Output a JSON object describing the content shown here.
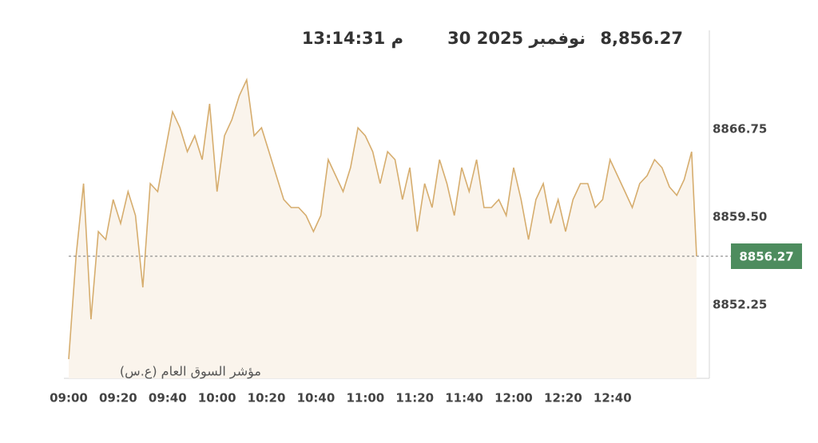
{
  "chart_data": {
    "type": "area",
    "header": {
      "value_label": "8,856.27",
      "date": "30 نوفمبر 2025",
      "time": "13:14:31 م"
    },
    "index_name": "مؤشر السوق العام (ع.س)",
    "last_value": 8856.27,
    "line_color": "#d6ad6e",
    "fill_color": "#faf4ec",
    "badge_color": "#4d8c5e",
    "x": [
      "09:00",
      "09:03",
      "09:06",
      "09:09",
      "09:12",
      "09:15",
      "09:18",
      "09:21",
      "09:24",
      "09:27",
      "09:30",
      "09:33",
      "09:36",
      "09:39",
      "09:42",
      "09:45",
      "09:48",
      "09:51",
      "09:54",
      "09:57",
      "10:00",
      "10:03",
      "10:06",
      "10:09",
      "10:12",
      "10:15",
      "10:18",
      "10:21",
      "10:24",
      "10:27",
      "10:30",
      "10:33",
      "10:36",
      "10:39",
      "10:42",
      "10:45",
      "10:48",
      "10:51",
      "10:54",
      "10:57",
      "11:00",
      "11:03",
      "11:06",
      "11:09",
      "11:12",
      "11:15",
      "11:18",
      "11:21",
      "11:24",
      "11:27",
      "11:30",
      "11:33",
      "11:36",
      "11:39",
      "11:42",
      "11:45",
      "11:48",
      "11:51",
      "11:54",
      "11:57",
      "12:00",
      "12:03",
      "12:06",
      "12:09",
      "12:12",
      "12:15",
      "12:18",
      "12:21",
      "12:24",
      "12:27",
      "12:30",
      "12:33",
      "12:36",
      "12:39",
      "12:42",
      "12:45",
      "12:48",
      "12:51",
      "12:54",
      "12:57",
      "13:00",
      "13:03",
      "13:06",
      "13:09",
      "13:12",
      "13:14"
    ],
    "values": [
      8847.77,
      8856.34,
      8862.27,
      8851.06,
      8858.31,
      8857.65,
      8860.95,
      8858.97,
      8861.61,
      8859.63,
      8853.7,
      8862.27,
      8861.61,
      8864.91,
      8868.2,
      8866.88,
      8864.91,
      8866.22,
      8864.25,
      8868.86,
      8861.61,
      8866.22,
      8867.54,
      8869.52,
      8870.84,
      8866.22,
      8866.88,
      8864.91,
      8862.93,
      8860.95,
      8860.29,
      8860.29,
      8859.63,
      8858.31,
      8859.63,
      8864.25,
      8862.93,
      8861.61,
      8863.59,
      8866.88,
      8866.22,
      8864.91,
      8862.27,
      8864.91,
      8864.25,
      8860.95,
      8863.59,
      8858.31,
      8862.27,
      8860.29,
      8864.25,
      8862.27,
      8859.63,
      8863.59,
      8861.61,
      8864.25,
      8860.29,
      8860.29,
      8860.95,
      8859.63,
      8863.59,
      8860.95,
      8857.65,
      8860.95,
      8862.27,
      8858.97,
      8860.95,
      8858.31,
      8860.95,
      8862.27,
      8862.27,
      8860.29,
      8860.95,
      8864.25,
      8862.93,
      8861.61,
      8860.29,
      8862.27,
      8862.93,
      8864.25,
      8863.59,
      8862.0,
      8861.3,
      8862.6,
      8864.9,
      8856.27
    ],
    "xlim": [
      "09:00",
      "13:14"
    ],
    "xticks": [
      "09:00",
      "09:20",
      "09:40",
      "10:00",
      "10:20",
      "10:40",
      "11:00",
      "11:20",
      "11:40",
      "12:00",
      "12:20",
      "12:40"
    ],
    "ylim": [
      8846.18,
      8874.8
    ],
    "yticks": [
      8852.25,
      {
        "value": 8859.5,
        "label": "8859.50"
      },
      8866.75
    ]
  }
}
